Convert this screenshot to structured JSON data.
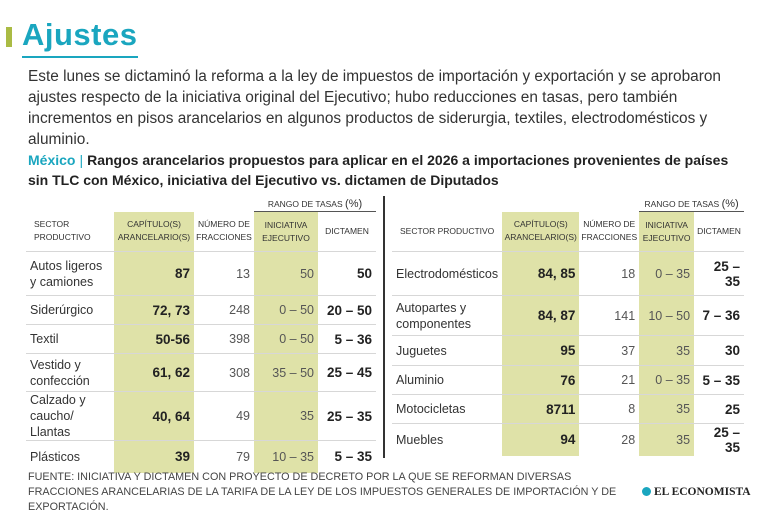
{
  "title": "Ajustes",
  "intro": "Este lunes se dictaminó la reforma a la ley de impuestos de importación y exportación y se aprobaron ajustes respecto de la iniciativa original del Ejecutivo; hubo reducciones en tasas, pero también incrementos en pisos arancelarios en algunos productos de siderurgia, textiles, electrodomésticos y aluminio.",
  "subtitle": {
    "country": "México",
    "separator": "|",
    "text": "Rangos arancelarios propuestos para aplicar en el 2026 a importaciones provenientes de países sin TLC con México, iniciativa del Ejecutivo vs. dictamen de Diputados"
  },
  "headers": {
    "rango": "Rango de tasas",
    "rango_pct": "(%)",
    "sector": "Sector productivo",
    "capitulo_1": "Capítulo(s)",
    "capitulo_2": "arancelario(s)",
    "numero_1": "Número de",
    "numero_2": "fracciones",
    "iniciativa_1": "Iniciativa",
    "iniciativa_2": "Ejecutivo",
    "dictamen": "Dictamen"
  },
  "chart_data": {
    "type": "table",
    "columns": [
      "Sector productivo",
      "Capítulo(s) arancelario(s)",
      "Número de fracciones",
      "Iniciativa Ejecutivo",
      "Dictamen"
    ],
    "left_rows": [
      {
        "sector": "Autos ligeros y camiones",
        "capitulo": "87",
        "fracciones": 13,
        "iniciativa": "50",
        "dictamen": "50"
      },
      {
        "sector": "Siderúrgico",
        "capitulo": "72, 73",
        "fracciones": 248,
        "iniciativa": "0 – 50",
        "dictamen": "20 – 50"
      },
      {
        "sector": "Textil",
        "capitulo": "50-56",
        "fracciones": 398,
        "iniciativa": "0 – 50",
        "dictamen": "5 – 36"
      },
      {
        "sector": "Vestido y confección",
        "capitulo": "61, 62",
        "fracciones": 308,
        "iniciativa": "35 – 50",
        "dictamen": "25 – 45"
      },
      {
        "sector": "Calzado y caucho/ Llantas",
        "capitulo": "40, 64",
        "fracciones": 49,
        "iniciativa": "35",
        "dictamen": "25 – 35"
      },
      {
        "sector": "Plásticos",
        "capitulo": "39",
        "fracciones": 79,
        "iniciativa": "10 – 35",
        "dictamen": "5 – 35"
      }
    ],
    "right_rows": [
      {
        "sector": "Electrodomésticos",
        "capitulo": "84, 85",
        "fracciones": 18,
        "iniciativa": "0 – 35",
        "dictamen": "25 – 35"
      },
      {
        "sector": "Autopartes y componentes",
        "capitulo": "84, 87",
        "fracciones": 141,
        "iniciativa": "10 – 50",
        "dictamen": "7 – 36"
      },
      {
        "sector": "Juguetes",
        "capitulo": "95",
        "fracciones": 37,
        "iniciativa": "35",
        "dictamen": "30"
      },
      {
        "sector": "Aluminio",
        "capitulo": "76",
        "fracciones": 21,
        "iniciativa": "0 – 35",
        "dictamen": "5 – 35"
      },
      {
        "sector": "Motocicletas",
        "capitulo": "8711",
        "fracciones": 8,
        "iniciativa": "35",
        "dictamen": "25"
      },
      {
        "sector": "Muebles",
        "capitulo": "94",
        "fracciones": 28,
        "iniciativa": "35",
        "dictamen": "25 – 35"
      }
    ]
  },
  "source": "FUENTE: INICIATIVA Y DICTAMEN CON PROYECTO DE DECRETO POR LA QUE SE REFORMAN DIVERSAS FRACCIONES ARANCELARIAS DE LA TARIFA DE LA LEY DE LOS IMPUESTOS GENERALES DE IMPORTACIÓN Y DE EXPORTACIÓN.",
  "logo": "EL ECONOMISTA",
  "colors": {
    "accent": "#1aa6bf",
    "highlight": "#dfe2a8",
    "bar": "#aabb44"
  }
}
